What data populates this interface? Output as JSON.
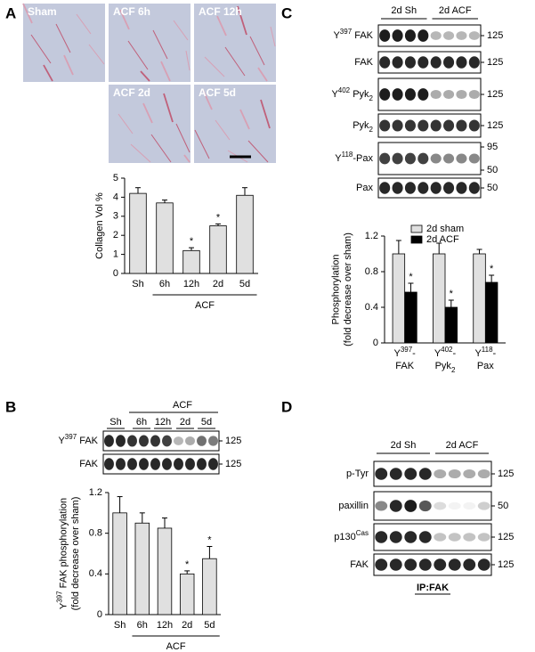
{
  "panel_labels": [
    "A",
    "B",
    "C",
    "D"
  ],
  "micrographs": [
    "Sham",
    "ACF 6h",
    "ACF 12h",
    "ACF 2d",
    "ACF 5d"
  ],
  "chart_data": [
    {
      "type": "bar",
      "ylabel": "Collagen Vol %",
      "categories": [
        "Sh",
        "6h",
        "12h",
        "2d",
        "5d"
      ],
      "values": [
        4.2,
        3.7,
        1.2,
        2.5,
        4.1
      ],
      "errors": [
        0.3,
        0.15,
        0.15,
        0.1,
        0.4
      ],
      "significant": [
        false,
        false,
        true,
        true,
        false
      ],
      "marker": "*",
      "group_label": "ACF",
      "color": "#e0e0e0",
      "ylim": [
        0,
        5
      ],
      "yticks": [
        0,
        1,
        2,
        3,
        4,
        5
      ]
    },
    {
      "type": "bar",
      "ylabel": [
        [
          {
            "t": "Y"
          },
          {
            "t": "397",
            "sup": true
          },
          {
            "t": " FAK phosphorylation"
          }
        ],
        [
          {
            "t": "(fold decrease over sham)"
          }
        ]
      ],
      "categories": [
        "Sh",
        "6h",
        "12h",
        "2d",
        "5d"
      ],
      "values": [
        1.0,
        0.9,
        0.85,
        0.4,
        0.55
      ],
      "errors": [
        0.16,
        0.1,
        0.1,
        0.03,
        0.12
      ],
      "significant": [
        false,
        false,
        false,
        true,
        true
      ],
      "marker": "*",
      "group_label": "ACF",
      "color": "#e0e0e0",
      "ylim": [
        0,
        1.2
      ],
      "yticks": [
        0,
        0.4,
        0.8,
        1.2
      ]
    },
    {
      "type": "grouped_bar",
      "ylabel": [
        [
          {
            "t": "Phosphorylation"
          }
        ],
        [
          {
            "t": "(fold decrease over sham)"
          }
        ]
      ],
      "categories": [
        [
          [
            {
              "t": "Y"
            },
            {
              "t": "397",
              "sup": true
            },
            {
              "t": "-"
            }
          ],
          [
            {
              "t": "FAK"
            }
          ]
        ],
        [
          [
            {
              "t": "Y"
            },
            {
              "t": "402",
              "sup": true
            },
            {
              "t": "-"
            }
          ],
          [
            {
              "t": "Pyk"
            },
            {
              "t": "2",
              "sub": true
            }
          ]
        ],
        [
          [
            {
              "t": "Y"
            },
            {
              "t": "118",
              "sup": true
            },
            {
              "t": "-"
            }
          ],
          [
            {
              "t": "Pax"
            }
          ]
        ]
      ],
      "series": [
        {
          "name": "2d sham",
          "color": "#e0e0e0",
          "values": [
            1.0,
            1.0,
            1.0
          ],
          "errors": [
            0.15,
            0.12,
            0.05
          ],
          "significant": [
            false,
            false,
            false
          ]
        },
        {
          "name": "2d ACF",
          "color": "#000000",
          "values": [
            0.57,
            0.4,
            0.68
          ],
          "errors": [
            0.1,
            0.08,
            0.08
          ],
          "significant": [
            true,
            true,
            true
          ]
        }
      ],
      "marker": "*",
      "legend": "top-right",
      "ylim": [
        0,
        1.2
      ],
      "yticks": [
        0,
        0.4,
        0.8,
        1.2
      ]
    }
  ],
  "blots_b": {
    "header": "ACF",
    "lanes": [
      "Sh",
      "6h",
      "12h",
      "2d",
      "5d"
    ],
    "rows": [
      {
        "label": [
          {
            "t": "Y"
          },
          {
            "t": "397",
            "sup": true
          },
          {
            "t": " FAK"
          }
        ],
        "mw": [
          "125"
        ]
      },
      {
        "label": [
          {
            "t": "FAK"
          }
        ],
        "mw": [
          "125"
        ]
      }
    ]
  },
  "blots_c": {
    "groups": [
      "2d Sh",
      "2d ACF"
    ],
    "rows": [
      {
        "label": [
          {
            "t": "Y"
          },
          {
            "t": "397",
            "sup": true
          },
          {
            "t": " FAK"
          }
        ],
        "mw": [
          "125"
        ]
      },
      {
        "label": [
          {
            "t": "FAK"
          }
        ],
        "mw": [
          "125"
        ]
      },
      {
        "label": [
          {
            "t": "Y"
          },
          {
            "t": "402",
            "sup": true
          },
          {
            "t": " Pyk"
          },
          {
            "t": "2",
            "sub": true
          }
        ],
        "mw": [
          "125"
        ]
      },
      {
        "label": [
          {
            "t": "Pyk"
          },
          {
            "t": "2",
            "sub": true
          }
        ],
        "mw": [
          "125"
        ]
      },
      {
        "label": [
          {
            "t": "Y"
          },
          {
            "t": "118",
            "sup": true
          },
          {
            "t": "-Pax"
          }
        ],
        "mw": [
          "95",
          "50"
        ]
      },
      {
        "label": [
          {
            "t": "Pax"
          }
        ],
        "mw": [
          "50"
        ]
      }
    ]
  },
  "blots_d": {
    "groups": [
      "2d Sh",
      "2d ACF"
    ],
    "rows": [
      {
        "label": [
          {
            "t": "p-Tyr"
          }
        ],
        "mw": [
          "125"
        ]
      },
      {
        "label": [
          {
            "t": "paxillin"
          }
        ],
        "mw": [
          "50"
        ]
      },
      {
        "label": [
          {
            "t": "p130"
          },
          {
            "t": "Cas",
            "sup": true
          }
        ],
        "mw": [
          "125"
        ]
      },
      {
        "label": [
          {
            "t": "FAK"
          }
        ],
        "mw": [
          "125"
        ]
      }
    ],
    "footer": "IP:FAK"
  }
}
